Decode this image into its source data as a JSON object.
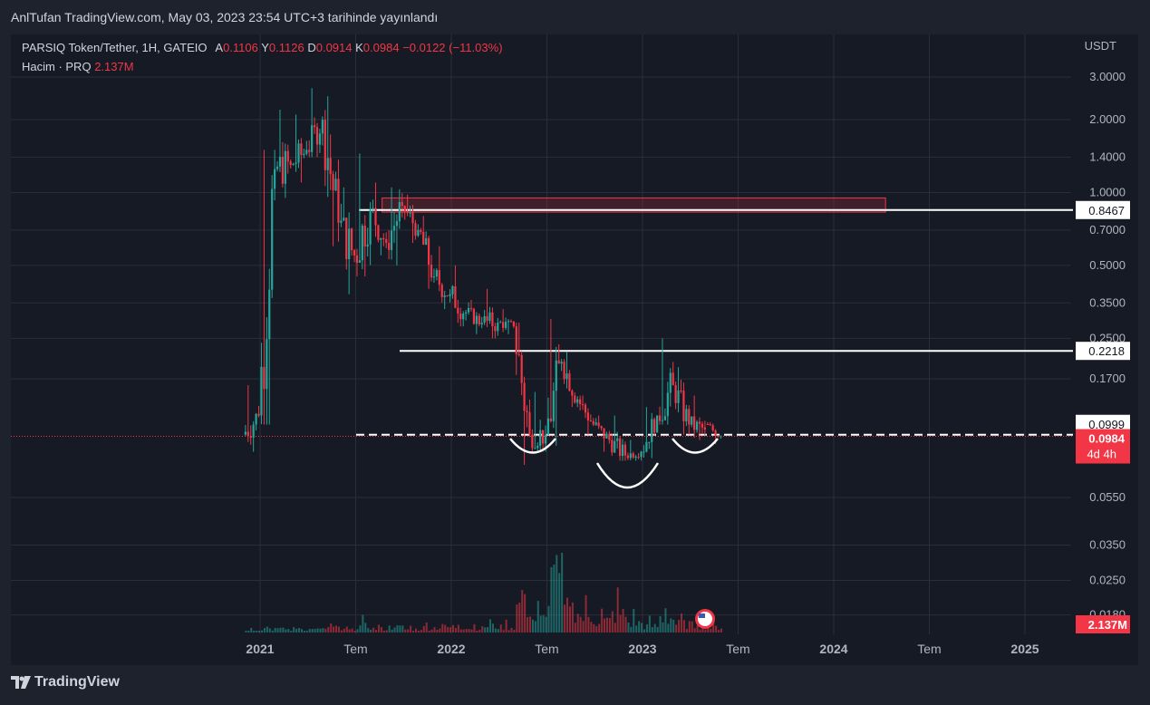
{
  "header": {
    "publish_text": "AnlTufan TradingView.com, May 03, 2023 23:54 UTC+3 tarihinde yayınlandı"
  },
  "legend": {
    "symbol": "PARSIQ Token/Tether, 1H, GATEIO",
    "open_label": "A",
    "open_value": "0.1106",
    "high_label": "Y",
    "high_value": "0.1126",
    "low_label": "D",
    "low_value": "0.0914",
    "close_label": "K",
    "close_value": "0.0984",
    "change": "−0.0122 (−11.03%)",
    "volume_label": "Hacim · PRQ",
    "volume_value": "2.137M"
  },
  "footer": {
    "brand": "TradingView"
  },
  "colors": {
    "up": "#26a69a",
    "down": "#f23645",
    "background": "#161a25",
    "grid": "#2a2e39",
    "text": "#b2b5be"
  },
  "chart_data": {
    "type": "candlestick",
    "scale": "log",
    "currency": "USDT",
    "y_ticks": [
      "3.0000",
      "2.0000",
      "1.4000",
      "1.0000",
      "0.7000",
      "0.5000",
      "0.3500",
      "0.2500",
      "0.1700",
      "0.0550",
      "0.0350",
      "0.0250",
      "0.0180"
    ],
    "x_ticks": [
      "2021",
      "Tem",
      "2022",
      "Tem",
      "2023",
      "Tem",
      "2024",
      "Tem",
      "2025"
    ],
    "price_labels": [
      {
        "value": "0.8467",
        "style": "white"
      },
      {
        "value": "0.2218",
        "style": "white"
      },
      {
        "value": "0.0999",
        "style": "white"
      },
      {
        "value": "0.0984",
        "style": "red",
        "sub": "4d 4h"
      }
    ],
    "volume_label": "2.137M",
    "horizontal_levels": [
      0.8467,
      0.2218,
      0.0999
    ],
    "resistance_zone": {
      "low": 0.83,
      "high": 0.95,
      "from": "2021-09",
      "to": "2024-03"
    },
    "current_price": 0.0984,
    "pattern": "inverse head and shoulders",
    "monthly_ohlc": [
      {
        "t": "2020-12",
        "o": 0.1,
        "h": 0.16,
        "l": 0.085,
        "c": 0.12
      },
      {
        "t": "2021-01",
        "o": 0.12,
        "h": 1.5,
        "l": 0.11,
        "c": 1.25
      },
      {
        "t": "2021-02",
        "o": 1.25,
        "h": 2.2,
        "l": 0.95,
        "c": 1.3
      },
      {
        "t": "2021-03",
        "o": 1.3,
        "h": 2.1,
        "l": 1.1,
        "c": 1.5
      },
      {
        "t": "2021-04",
        "o": 1.5,
        "h": 2.7,
        "l": 1.4,
        "c": 2.0
      },
      {
        "t": "2021-05",
        "o": 2.0,
        "h": 2.5,
        "l": 0.6,
        "c": 0.75
      },
      {
        "t": "2021-06",
        "o": 0.75,
        "h": 1.05,
        "l": 0.38,
        "c": 0.55
      },
      {
        "t": "2021-07",
        "o": 0.55,
        "h": 1.45,
        "l": 0.45,
        "c": 0.85
      },
      {
        "t": "2021-08",
        "o": 0.85,
        "h": 1.1,
        "l": 0.55,
        "c": 0.62
      },
      {
        "t": "2021-09",
        "o": 0.62,
        "h": 1.05,
        "l": 0.5,
        "c": 0.88
      },
      {
        "t": "2021-10",
        "o": 0.88,
        "h": 0.98,
        "l": 0.62,
        "c": 0.7
      },
      {
        "t": "2021-11",
        "o": 0.7,
        "h": 0.8,
        "l": 0.4,
        "c": 0.45
      },
      {
        "t": "2021-12",
        "o": 0.45,
        "h": 0.6,
        "l": 0.33,
        "c": 0.38
      },
      {
        "t": "2022-01",
        "o": 0.38,
        "h": 0.5,
        "l": 0.28,
        "c": 0.32
      },
      {
        "t": "2022-02",
        "o": 0.32,
        "h": 0.36,
        "l": 0.26,
        "c": 0.29
      },
      {
        "t": "2022-03",
        "o": 0.29,
        "h": 0.4,
        "l": 0.25,
        "c": 0.29
      },
      {
        "t": "2022-04",
        "o": 0.29,
        "h": 0.33,
        "l": 0.26,
        "c": 0.28
      },
      {
        "t": "2022-05",
        "o": 0.28,
        "h": 0.29,
        "l": 0.075,
        "c": 0.1
      },
      {
        "t": "2022-06",
        "o": 0.1,
        "h": 0.15,
        "l": 0.085,
        "c": 0.1
      },
      {
        "t": "2022-07",
        "o": 0.1,
        "h": 0.3,
        "l": 0.09,
        "c": 0.2
      },
      {
        "t": "2022-08",
        "o": 0.2,
        "h": 0.22,
        "l": 0.13,
        "c": 0.14
      },
      {
        "t": "2022-09",
        "o": 0.14,
        "h": 0.145,
        "l": 0.1,
        "c": 0.11
      },
      {
        "t": "2022-10",
        "o": 0.11,
        "h": 0.12,
        "l": 0.085,
        "c": 0.095
      },
      {
        "t": "2022-11",
        "o": 0.095,
        "h": 0.12,
        "l": 0.078,
        "c": 0.082
      },
      {
        "t": "2022-12",
        "o": 0.082,
        "h": 0.095,
        "l": 0.078,
        "c": 0.085
      },
      {
        "t": "2023-01",
        "o": 0.085,
        "h": 0.13,
        "l": 0.08,
        "c": 0.12
      },
      {
        "t": "2023-02",
        "o": 0.12,
        "h": 0.25,
        "l": 0.11,
        "c": 0.16
      },
      {
        "t": "2023-03",
        "o": 0.16,
        "h": 0.19,
        "l": 0.1,
        "c": 0.11
      },
      {
        "t": "2023-04",
        "o": 0.11,
        "h": 0.145,
        "l": 0.095,
        "c": 0.105
      },
      {
        "t": "2023-05",
        "o": 0.1106,
        "h": 0.1126,
        "l": 0.0914,
        "c": 0.0984
      }
    ],
    "volume_relative": [
      0.04,
      0.08,
      0.06,
      0.07,
      0.06,
      0.09,
      0.05,
      0.12,
      0.07,
      0.1,
      0.06,
      0.09,
      0.1,
      0.11,
      0.08,
      0.12,
      0.1,
      0.5,
      0.25,
      1.0,
      0.45,
      0.28,
      0.22,
      0.34,
      0.18,
      0.12,
      0.28,
      0.16,
      0.14,
      0.1
    ]
  }
}
